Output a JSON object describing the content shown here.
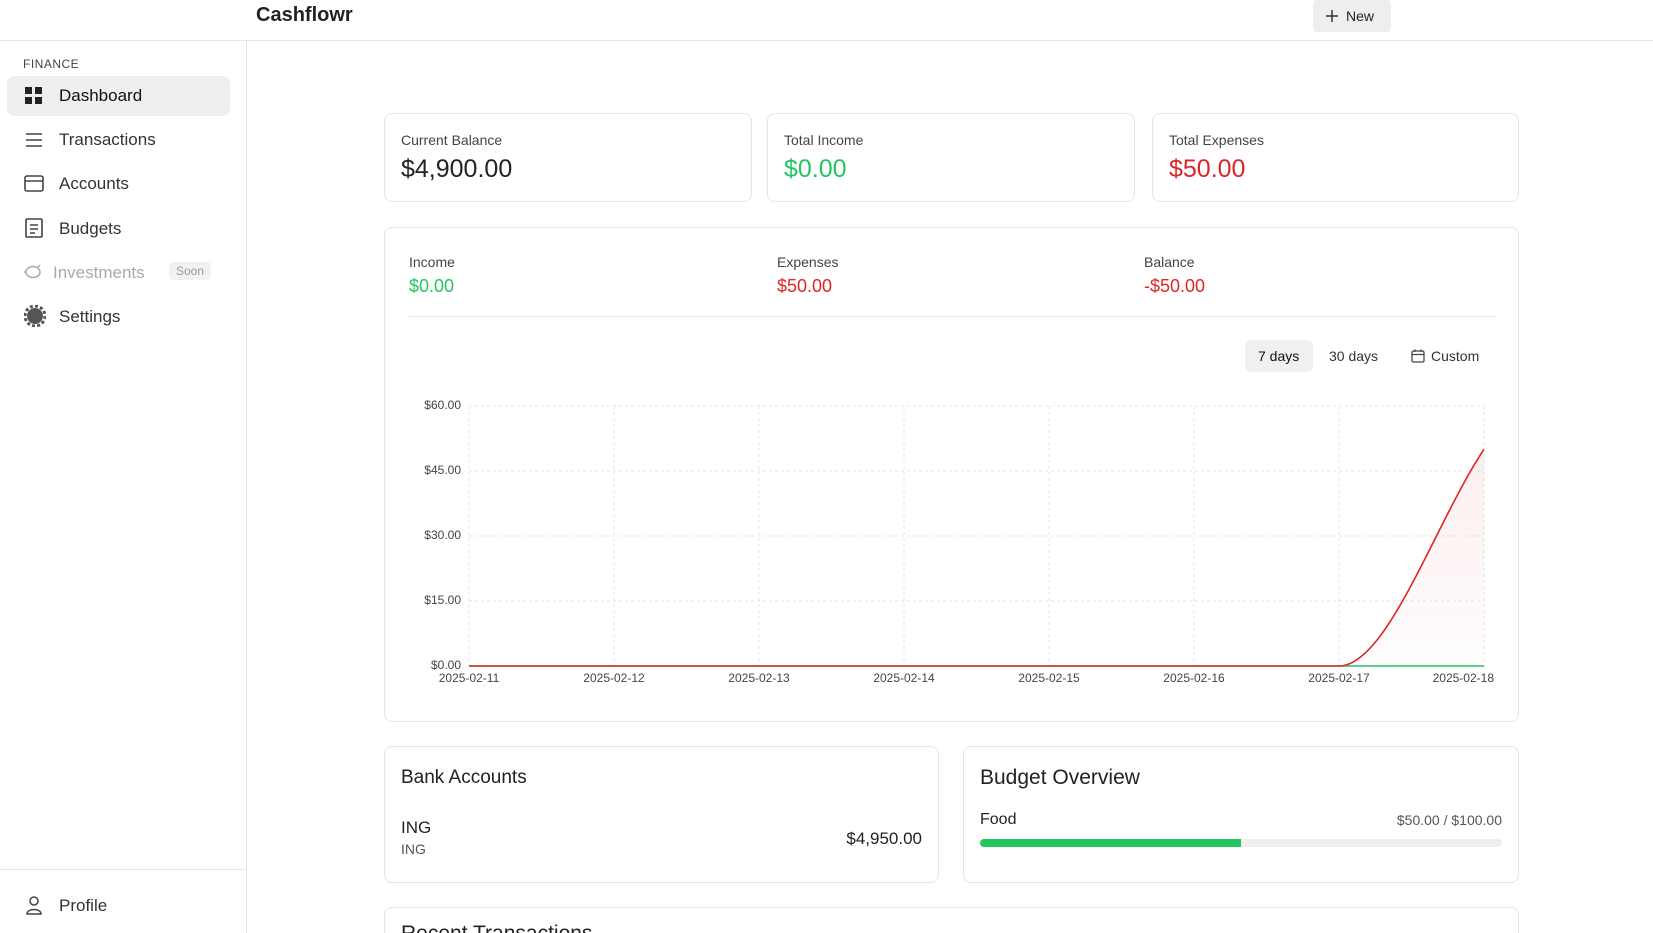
{
  "header": {
    "title": "Cashflowr",
    "new_button": "New"
  },
  "sidebar": {
    "section": "FINANCE",
    "nav": [
      {
        "label": "Dashboard"
      },
      {
        "label": "Transactions"
      },
      {
        "label": "Accounts"
      },
      {
        "label": "Budgets"
      },
      {
        "label": "Investments",
        "badge": "Soon"
      },
      {
        "label": "Settings"
      }
    ],
    "profile": "Profile"
  },
  "stats": [
    {
      "label": "Current Balance",
      "value": "$4,900.00"
    },
    {
      "label": "Total Income",
      "value": "$0.00"
    },
    {
      "label": "Total Expenses",
      "value": "$50.00"
    }
  ],
  "summary": [
    {
      "label": "Income",
      "value": "$0.00"
    },
    {
      "label": "Expenses",
      "value": "$50.00"
    },
    {
      "label": "Balance",
      "value": "-$50.00"
    }
  ],
  "ranges": [
    "7 days",
    "30 days",
    "Custom"
  ],
  "chart_data": {
    "type": "line",
    "categories": [
      "2025-02-11",
      "2025-02-12",
      "2025-02-13",
      "2025-02-14",
      "2025-02-15",
      "2025-02-16",
      "2025-02-17",
      "2025-02-18"
    ],
    "series": [
      {
        "color": "#22c55e",
        "values": [
          0,
          0,
          0,
          0,
          0,
          0,
          0,
          0
        ]
      },
      {
        "color": "#dc2626",
        "values": [
          0,
          0,
          0,
          0,
          0,
          0,
          0,
          50
        ]
      }
    ],
    "ylim": [
      0,
      60
    ],
    "yticks": [
      {
        "value": 0,
        "label": "$0.00"
      },
      {
        "value": 15,
        "label": "$15.00"
      },
      {
        "value": 30,
        "label": "$30.00"
      },
      {
        "value": 45,
        "label": "$45.00"
      },
      {
        "value": 60,
        "label": "$60.00"
      }
    ],
    "grid": true
  },
  "bank_accounts": {
    "title": "Bank Accounts",
    "items": [
      {
        "name": "ING",
        "bank": "ING",
        "balance": "$4,950.00"
      }
    ]
  },
  "budget_overview": {
    "title": "Budget Overview",
    "items": [
      {
        "name": "Food",
        "amount": "$50.00 / $100.00",
        "spent": 50,
        "limit": 100
      }
    ]
  },
  "recent_transactions": {
    "title": "Recent Transactions"
  }
}
